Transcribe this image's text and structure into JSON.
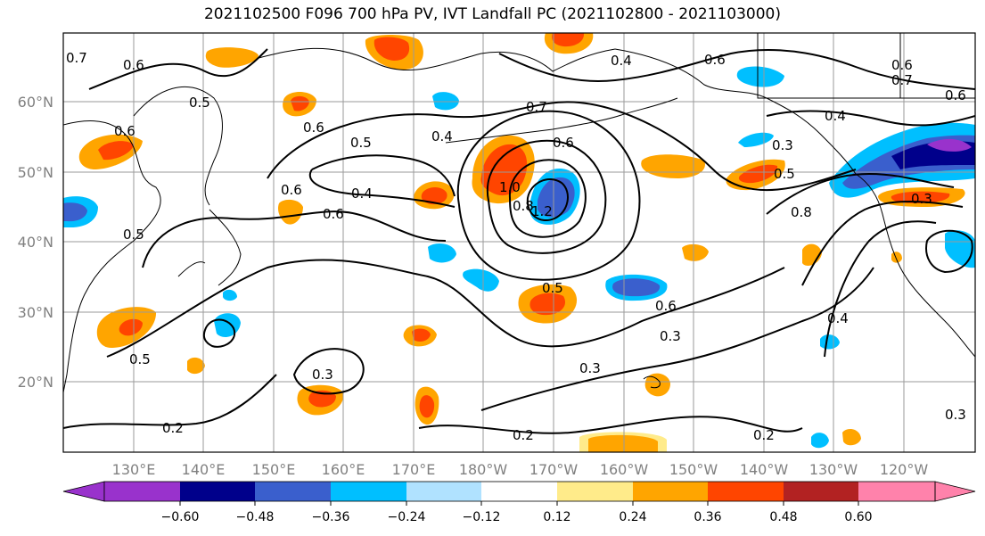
{
  "title": "2021102500 F096 700 hPa PV, IVT Landfall PC (2021102800 - 2021103000)",
  "map": {
    "lat_labels": [
      "60°N",
      "50°N",
      "40°N",
      "30°N",
      "20°N"
    ],
    "lon_labels": [
      "130°E",
      "140°E",
      "150°E",
      "160°E",
      "170°E",
      "180°W",
      "170°W",
      "160°W",
      "150°W",
      "140°W",
      "130°W",
      "120°W"
    ],
    "contour_labels": [
      "0.6",
      "0.7",
      "0.5",
      "0.6",
      "0.6",
      "0.5",
      "0.4",
      "0.5",
      "0.6",
      "0.4",
      "0.6",
      "0.4",
      "0.7",
      "0.6",
      "1.0",
      "0.8",
      "1.2",
      "0.6",
      "0.6",
      "0.3",
      "0.5",
      "0.8",
      "0.4",
      "0.3",
      "0.5",
      "0.6",
      "0.5",
      "0.6",
      "0.3",
      "0.4",
      "0.3",
      "0.3",
      "0.2",
      "0.2",
      "0.2",
      "0.3",
      "0.7"
    ],
    "colors": {
      "land_outline": "#000000",
      "grid": "#9a9a9a",
      "tick_label": "#808080"
    }
  },
  "colorbar": {
    "tick_labels": [
      "−0.60",
      "−0.48",
      "−0.36",
      "−0.24",
      "−0.12",
      "0.12",
      "0.24",
      "0.36",
      "0.48",
      "0.60"
    ],
    "colors": [
      "#9932cc",
      "#00008b",
      "#3a5fcd",
      "#00bfff",
      "#b0e2ff",
      "#ffffff",
      "#ffeb8a",
      "#ffa500",
      "#ff4500",
      "#b22222",
      "#ff82ab"
    ]
  }
}
